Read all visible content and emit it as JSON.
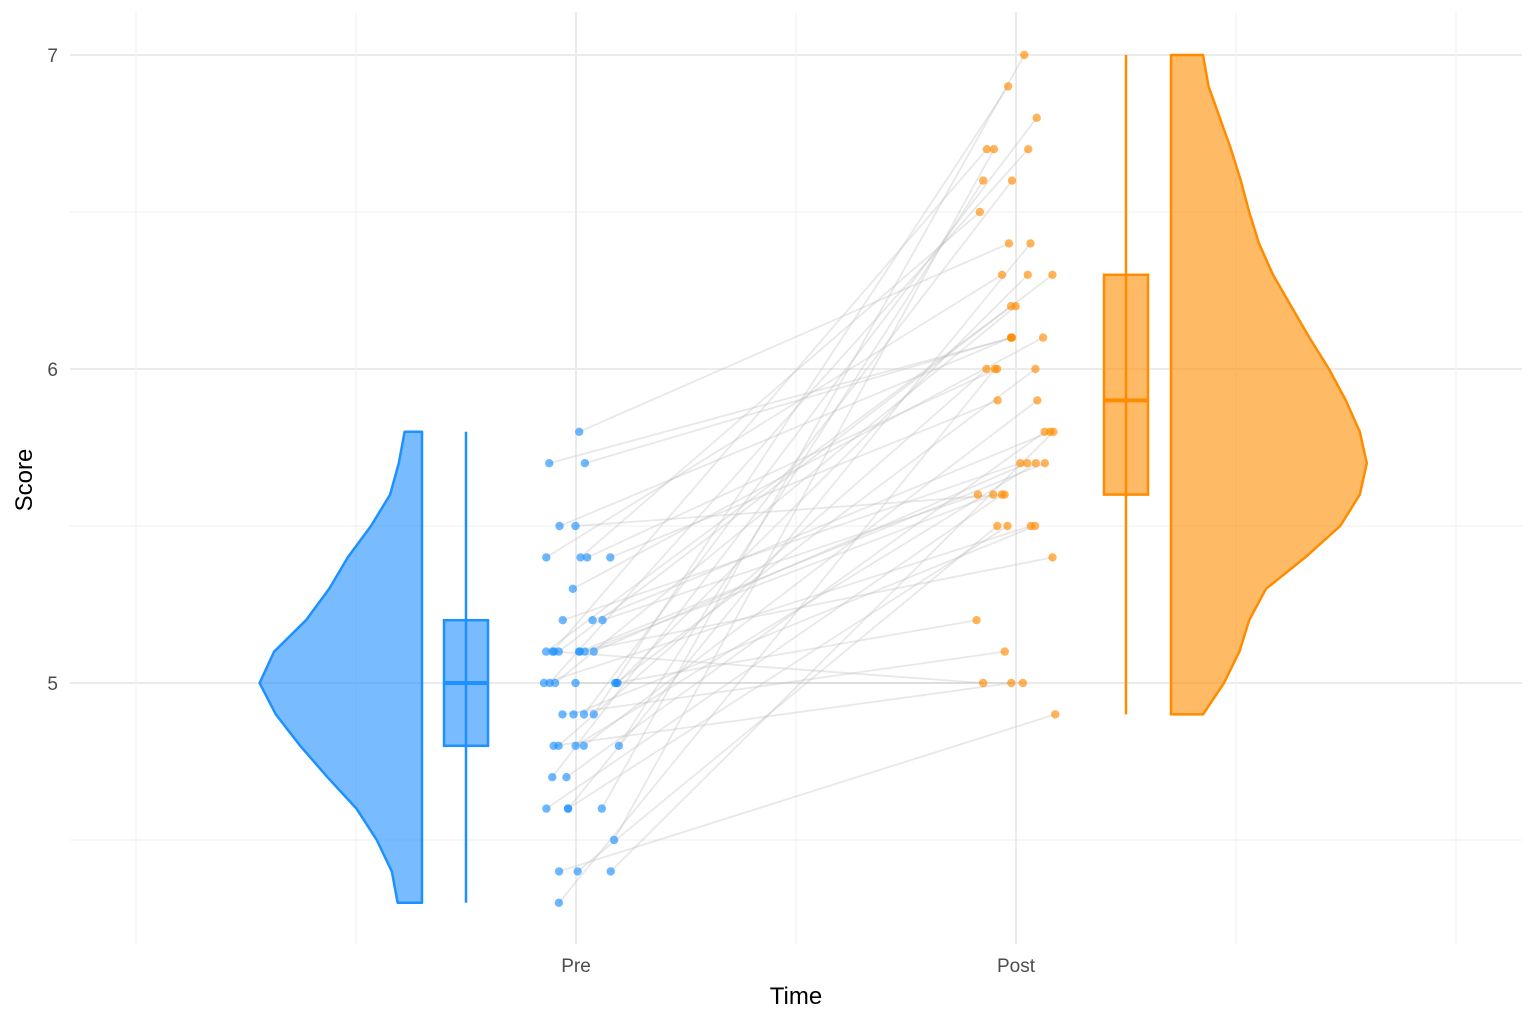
{
  "chart_data": {
    "type": "raincloud",
    "xlabel": "Time",
    "ylabel": "Score",
    "categories": [
      "Pre",
      "Post"
    ],
    "ylim": [
      4.2,
      7.15
    ],
    "y_ticks": [
      5,
      6,
      7
    ],
    "grid": true,
    "colors": {
      "Pre": "#1e90ff",
      "Post": "#ff8c00",
      "lines": "#bdbdbd"
    },
    "series": [
      {
        "category": "Pre",
        "summary": {
          "min": 4.3,
          "q1": 4.8,
          "median": 5.0,
          "q3": 5.2,
          "max": 5.8
        },
        "points": [
          5.8,
          5.7,
          5.7,
          5.5,
          5.5,
          5.4,
          5.4,
          5.4,
          5.4,
          5.3,
          5.2,
          5.2,
          5.2,
          5.1,
          5.1,
          5.1,
          5.1,
          5.1,
          5.1,
          5.1,
          5.1,
          5.0,
          5.0,
          5.0,
          5.0,
          5.0,
          5.0,
          5.0,
          4.9,
          4.9,
          4.9,
          4.9,
          4.8,
          4.8,
          4.8,
          4.8,
          4.8,
          4.7,
          4.7,
          4.6,
          4.6,
          4.6,
          4.6,
          4.5,
          4.4,
          4.4,
          4.4,
          4.3
        ]
      },
      {
        "category": "Post",
        "summary": {
          "min": 4.9,
          "q1": 5.6,
          "median": 5.9,
          "q3": 6.3,
          "max": 7.0
        },
        "points": [
          7.0,
          6.9,
          6.8,
          6.7,
          6.7,
          6.7,
          6.6,
          6.6,
          6.5,
          6.4,
          6.4,
          6.3,
          6.3,
          6.3,
          6.2,
          6.2,
          6.1,
          6.1,
          6.1,
          6.1,
          6.0,
          6.0,
          6.0,
          6.0,
          5.9,
          5.9,
          5.8,
          5.8,
          5.8,
          5.7,
          5.7,
          5.7,
          5.7,
          5.6,
          5.6,
          5.6,
          5.6,
          5.5,
          5.5,
          5.5,
          5.5,
          5.4,
          5.2,
          5.1,
          5.0,
          5.0,
          5.0,
          4.9
        ]
      }
    ],
    "density": {
      "Pre": [
        [
          4.3,
          0.42
        ],
        [
          4.4,
          0.52
        ],
        [
          4.5,
          0.78
        ],
        [
          4.6,
          1.13
        ],
        [
          4.7,
          1.63
        ],
        [
          4.8,
          2.1
        ],
        [
          4.9,
          2.52
        ],
        [
          5.0,
          2.8
        ],
        [
          5.1,
          2.55
        ],
        [
          5.2,
          2.0
        ],
        [
          5.3,
          1.6
        ],
        [
          5.4,
          1.28
        ],
        [
          5.5,
          0.88
        ],
        [
          5.6,
          0.55
        ],
        [
          5.7,
          0.4
        ],
        [
          5.8,
          0.3
        ]
      ],
      "Post": [
        [
          4.9,
          0.0
        ],
        [
          5.0,
          0.15
        ],
        [
          5.1,
          0.26
        ],
        [
          5.2,
          0.33
        ],
        [
          5.3,
          0.45
        ],
        [
          5.4,
          0.73
        ],
        [
          5.5,
          0.98
        ],
        [
          5.6,
          1.12
        ],
        [
          5.7,
          1.17
        ],
        [
          5.8,
          1.12
        ],
        [
          5.9,
          1.02
        ],
        [
          6.0,
          0.9
        ],
        [
          6.1,
          0.76
        ],
        [
          6.2,
          0.63
        ],
        [
          6.3,
          0.5
        ],
        [
          6.4,
          0.4
        ],
        [
          6.5,
          0.33
        ],
        [
          6.6,
          0.27
        ],
        [
          6.7,
          0.2
        ],
        [
          6.8,
          0.12
        ],
        [
          6.9,
          0.04
        ],
        [
          7.0,
          0.0
        ]
      ]
    }
  }
}
